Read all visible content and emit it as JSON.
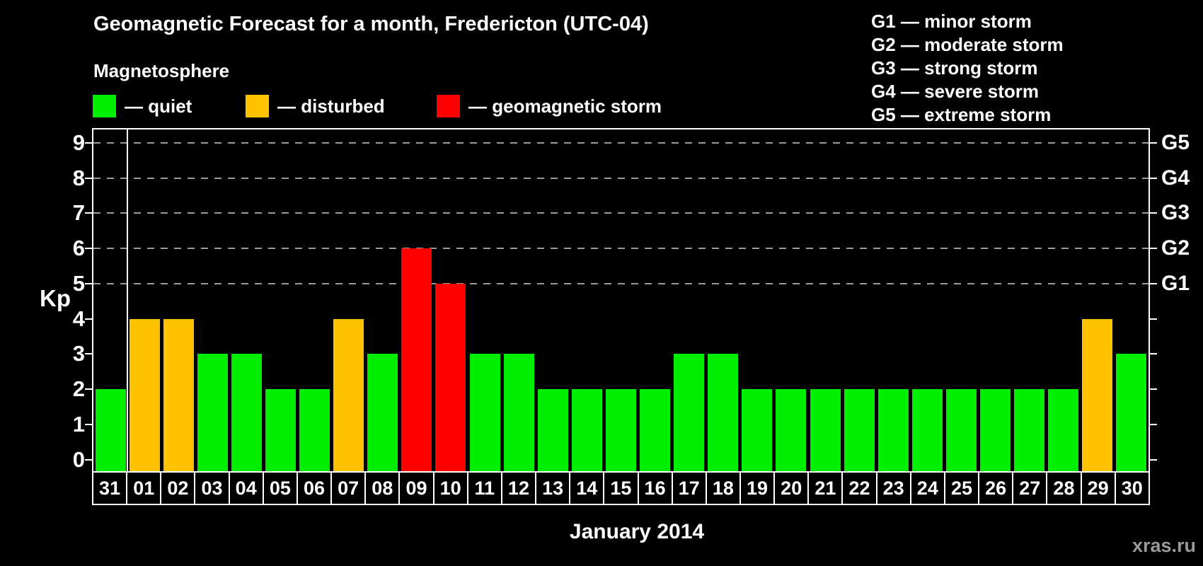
{
  "title": "Geomagnetic Forecast for a month, Fredericton (UTC-04)",
  "legend": {
    "heading": "Magnetosphere",
    "items": [
      {
        "key": "quiet",
        "label": "— quiet",
        "color": "#00ee00",
        "x": 131
      },
      {
        "key": "disturbed",
        "label": "— disturbed",
        "color": "#ffc200",
        "x": 347
      },
      {
        "key": "storm",
        "label": "— geomagnetic storm",
        "color": "#ff0000",
        "x": 617
      }
    ]
  },
  "storm_scale_legend": [
    "G1 — minor storm",
    "G2 — moderate storm",
    "G3 — strong storm",
    "G4 — severe storm",
    "G5 — extreme storm"
  ],
  "chart_data": {
    "type": "bar",
    "title": "Geomagnetic Forecast for a month, Fredericton (UTC-04)",
    "xlabel": "January 2014",
    "ylabel": "Kp",
    "ylim": [
      0,
      9
    ],
    "y_ticks": [
      0,
      1,
      2,
      3,
      4,
      5,
      6,
      7,
      8,
      9
    ],
    "grid": "dashed horizontal lines at Kp 5–9 only",
    "right_axis": {
      "labels": [
        "G1",
        "G2",
        "G3",
        "G4",
        "G5"
      ],
      "at_kp": [
        5,
        6,
        7,
        8,
        9
      ]
    },
    "status_colors": {
      "quiet": "#00ee00",
      "disturbed": "#ffc200",
      "storm": "#ff0000"
    },
    "categories": [
      "31",
      "01",
      "02",
      "03",
      "04",
      "05",
      "06",
      "07",
      "08",
      "09",
      "10",
      "11",
      "12",
      "13",
      "14",
      "15",
      "16",
      "17",
      "18",
      "19",
      "20",
      "21",
      "22",
      "23",
      "24",
      "25",
      "26",
      "27",
      "28",
      "29",
      "30"
    ],
    "values": [
      2,
      4,
      4,
      3,
      3,
      2,
      2,
      4,
      3,
      6,
      5,
      3,
      3,
      2,
      2,
      2,
      2,
      3,
      3,
      2,
      2,
      2,
      2,
      2,
      2,
      2,
      2,
      2,
      2,
      4,
      3
    ],
    "statuses": [
      "quiet",
      "disturbed",
      "disturbed",
      "quiet",
      "quiet",
      "quiet",
      "quiet",
      "disturbed",
      "quiet",
      "storm",
      "storm",
      "quiet",
      "quiet",
      "quiet",
      "quiet",
      "quiet",
      "quiet",
      "quiet",
      "quiet",
      "quiet",
      "quiet",
      "quiet",
      "quiet",
      "quiet",
      "quiet",
      "quiet",
      "quiet",
      "quiet",
      "quiet",
      "disturbed",
      "quiet"
    ],
    "separator_after_category": "31"
  },
  "month_label": "January 2014",
  "watermark": "xras.ru"
}
